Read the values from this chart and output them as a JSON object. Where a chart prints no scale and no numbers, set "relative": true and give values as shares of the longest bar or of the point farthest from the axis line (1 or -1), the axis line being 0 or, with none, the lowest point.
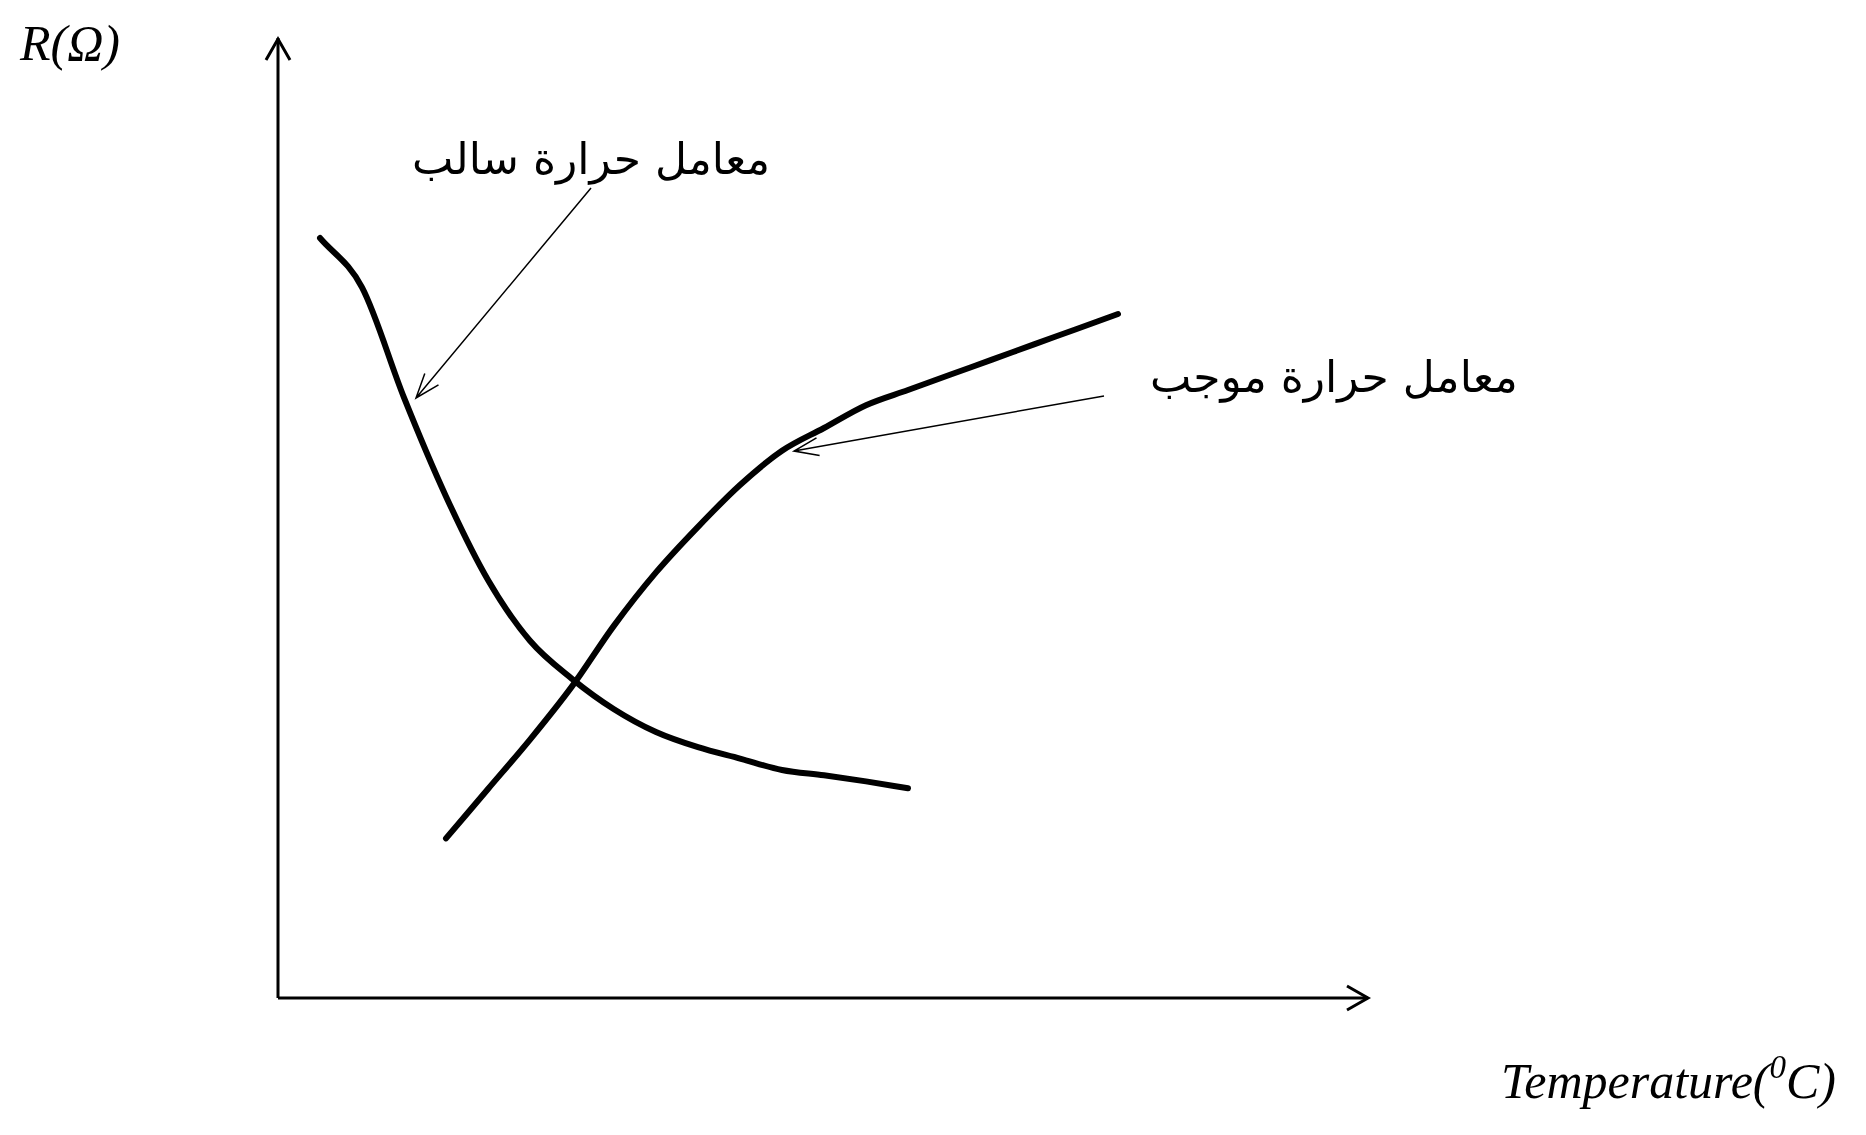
{
  "chart_data": {
    "type": "line",
    "relative": true,
    "xlabel": "Temperature($^{0}$C)",
    "ylabel": "R(Ω)",
    "tick_labels": false,
    "grid": false,
    "legend": false,
    "marker": "none",
    "line_style": "solid",
    "categories": [
      null,
      null,
      null,
      null,
      null,
      null,
      null,
      null,
      null,
      null,
      null,
      null,
      null,
      null,
      null,
      null,
      null,
      null,
      null,
      null,
      null,
      null,
      null,
      null,
      null,
      null
    ],
    "series": [
      {
        "name": "معامل حرارة سالب",
        "color": "#000000",
        "values": [
          null,
          1,
          0.935,
          0.79,
          0.66,
          0.55,
          0.47,
          0.42,
          0.38,
          0.35,
          0.33,
          0.315,
          0.3,
          0.293,
          0.285,
          0.276,
          null,
          null,
          null,
          null,
          null,
          null,
          null,
          null,
          null,
          null
        ]
      },
      {
        "name": "معامل حرارة موجب",
        "color": "#000000",
        "values": [
          null,
          null,
          null,
          null,
          0.21,
          0.275,
          0.34,
          0.41,
          0.49,
          0.56,
          0.62,
          0.675,
          0.72,
          0.75,
          0.78,
          0.8,
          0.82,
          0.84,
          0.86,
          0.88,
          0.9,
          null,
          null,
          null,
          null,
          null
        ]
      }
    ]
  }
}
